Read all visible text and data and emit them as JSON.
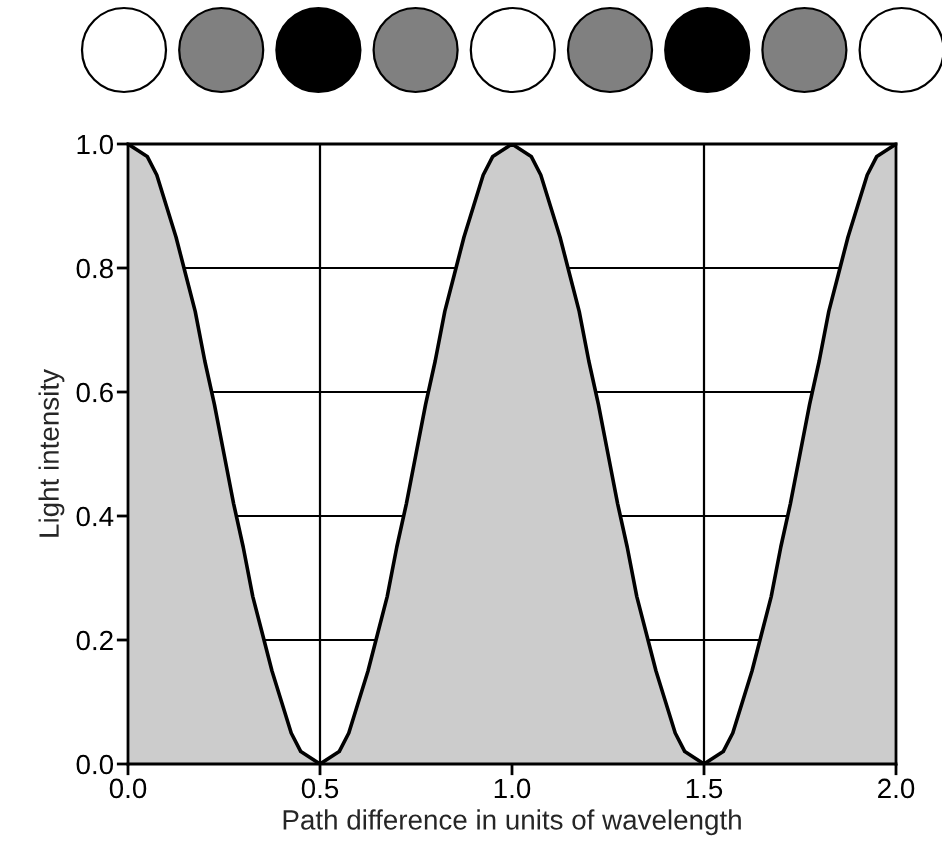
{
  "chart_data": {
    "type": "area",
    "xlabel": "Path difference in units of wavelength",
    "ylabel": "Light intensity",
    "x": [
      0,
      0.025,
      0.05,
      0.075,
      0.1,
      0.125,
      0.15,
      0.175,
      0.2,
      0.225,
      0.25,
      0.275,
      0.3,
      0.325,
      0.35,
      0.375,
      0.4,
      0.425,
      0.45,
      0.475,
      0.5,
      0.525,
      0.55,
      0.575,
      0.6,
      0.625,
      0.65,
      0.675,
      0.7,
      0.725,
      0.75,
      0.775,
      0.8,
      0.825,
      0.85,
      0.875,
      0.9,
      0.925,
      0.95,
      0.975,
      1.0,
      1.025,
      1.05,
      1.075,
      1.1,
      1.125,
      1.15,
      1.175,
      1.2,
      1.225,
      1.25,
      1.275,
      1.3,
      1.325,
      1.35,
      1.375,
      1.4,
      1.425,
      1.45,
      1.475,
      1.5,
      1.525,
      1.55,
      1.575,
      1.6,
      1.625,
      1.65,
      1.675,
      1.7,
      1.725,
      1.75,
      1.775,
      1.8,
      1.825,
      1.85,
      1.875,
      1.9,
      1.925,
      1.95,
      1.975,
      2.0
    ],
    "series": [
      {
        "color": "#cccccc",
        "values": [
          1,
          0.99,
          0.98,
          0.95,
          0.9,
          0.85,
          0.79,
          0.73,
          0.65,
          0.58,
          0.5,
          0.42,
          0.35,
          0.27,
          0.21,
          0.15,
          0.1,
          0.05,
          0.02,
          0.01,
          0,
          0.01,
          0.02,
          0.05,
          0.1,
          0.15,
          0.21,
          0.27,
          0.35,
          0.42,
          0.5,
          0.58,
          0.65,
          0.73,
          0.79,
          0.85,
          0.9,
          0.95,
          0.98,
          0.99,
          1,
          0.99,
          0.98,
          0.95,
          0.9,
          0.85,
          0.79,
          0.73,
          0.65,
          0.58,
          0.5,
          0.42,
          0.35,
          0.27,
          0.21,
          0.15,
          0.1,
          0.05,
          0.02,
          0.01,
          0,
          0.01,
          0.02,
          0.05,
          0.1,
          0.15,
          0.21,
          0.27,
          0.35,
          0.42,
          0.5,
          0.58,
          0.65,
          0.73,
          0.79,
          0.85,
          0.9,
          0.95,
          0.98,
          0.99,
          1
        ]
      }
    ],
    "xlim": [
      0,
      2
    ],
    "ylim": [
      0,
      1
    ],
    "xticks": [
      {
        "value": 0,
        "label": "0.0"
      },
      0.5,
      {
        "value": 1,
        "label": "1.0"
      },
      1.5,
      {
        "value": 2,
        "label": "2.0"
      }
    ],
    "yticks": [
      {
        "value": 0,
        "label": "0.0"
      },
      0.2,
      0.4,
      0.6,
      0.8,
      {
        "value": 1,
        "label": "1.0"
      }
    ],
    "grid": true
  }
}
